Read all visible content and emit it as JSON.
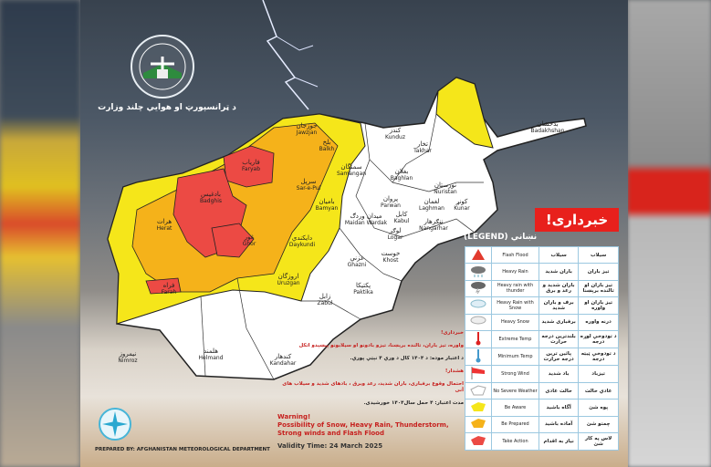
{
  "header": {
    "ministry": "د ټرانسپورټ او هوايي چلند وزارت"
  },
  "banner": {
    "title": "خبرداری!"
  },
  "legend": {
    "title": "(LEGEND) نښاني",
    "rows": [
      {
        "icon": "flash-flood-icon",
        "en": "Flash Flood",
        "fa": "سیلاب",
        "ps": "سیلاب"
      },
      {
        "icon": "heavy-rain-icon",
        "en": "Heavy Rain",
        "fa": "باران شدید",
        "ps": "تیز باران"
      },
      {
        "icon": "heavy-rain-thunder-icon",
        "en": "Heavy rain with thunder",
        "fa": "باران شدید و رعد و برق",
        "ps": "تیز باران او تالنده برېښنا"
      },
      {
        "icon": "rain-snow-icon",
        "en": "Heavy Rain with Snow",
        "fa": "برف و باران شدید",
        "ps": "تیز باران او واوره"
      },
      {
        "icon": "heavy-snow-icon",
        "en": "Heavy Snow",
        "fa": "برفباری شدید",
        "ps": "درنه واوره"
      },
      {
        "icon": "thermometer-hot-icon",
        "en": "Extreme Temp",
        "fa": "بلندترین درجه حرارت",
        "ps": "د تودوخې لوړه درجه"
      },
      {
        "icon": "thermometer-cold-icon",
        "en": "Minimum  Temp",
        "fa": "پائین ترین درجه حرارت",
        "ps": "د تودوخې ټیټه درجه"
      },
      {
        "icon": "windsock-icon",
        "en": "Strong Wind",
        "fa": "باد شدید",
        "ps": "تیزباد"
      },
      {
        "icon": "map-white-icon",
        "en": "No Severe Weather",
        "fa": "حالت عادی",
        "ps": "عادي حالت"
      },
      {
        "icon": "map-yellow-icon",
        "en": "Be Aware",
        "fa": "آگاه باشید",
        "ps": "پوه شئ"
      },
      {
        "icon": "map-orange-icon",
        "en": "Be Prepared",
        "fa": "آماده باشید",
        "ps": "چمتو شئ"
      },
      {
        "icon": "map-red-icon",
        "en": "Take Action",
        "fa": "نیاز به اقدام",
        "ps": "لاس په کار شئ"
      }
    ]
  },
  "warning": {
    "ps_title": "خبرداری!",
    "ps_text": "واوره، تیز باران، تالنده برېښنا، تیزو بادونو او سیلابونو پېښېدو اتکل",
    "ps_validity": "د اعتبار موده: د ۱۴۰۴ کال د وري ۴ نېټې پورې.",
    "fa_title": "هشدار!",
    "fa_text": "احتمال وقوع برفباری، باران شدید، رعد وبرق ، بادهای شدید و سیلاب های آنی",
    "fa_validity": "مدت اعتبار: ۴ حمل سال۱۴۰۴ خورشیدی.",
    "en_title": "Warning!",
    "en_text": "Possibility of Snow, Heavy Rain, Thunderstorm, Strong winds and Flash Flood",
    "en_validity": "Validity Time: 24 March 2025"
  },
  "footer": {
    "prepared": "PREPARED BY: AFGHANISTAN METEOROLOGICAL DEPARTMENT"
  },
  "colors": {
    "be_aware": "#f5e61a",
    "be_prepared": "#f5b21a",
    "take_action": "#ec4a44",
    "no_severe": "#ffffff",
    "banner": "#e8201c"
  },
  "provinces": [
    {
      "ps": "هرات",
      "en": "Herat"
    },
    {
      "ps": "بادغیس",
      "en": "Badghis"
    },
    {
      "ps": "فاریاب",
      "en": "Faryab"
    },
    {
      "ps": "جوزجان",
      "en": "Jawzjan"
    },
    {
      "ps": "بلخ",
      "en": "Balkh"
    },
    {
      "ps": "سرپل",
      "en": "Sar-e-Pul"
    },
    {
      "ps": "سمنگان",
      "en": "Samangan"
    },
    {
      "ps": "غور",
      "en": "Ghor"
    },
    {
      "ps": "دایکندي",
      "en": "Daykundi"
    },
    {
      "ps": "بامیان",
      "en": "Bamyan"
    },
    {
      "ps": "اروزگان",
      "en": "Uruzgan"
    },
    {
      "ps": "فراه",
      "en": "Farah"
    },
    {
      "ps": "نیمروز",
      "en": "Nimroz"
    },
    {
      "ps": "هلمند",
      "en": "Helmand"
    },
    {
      "ps": "کندهار",
      "en": "Kandahar"
    },
    {
      "ps": "زابل",
      "en": "Zabul"
    },
    {
      "ps": "غزني",
      "en": "Ghazni"
    },
    {
      "ps": "پکتیکا",
      "en": "Paktika"
    },
    {
      "ps": "خوست",
      "en": "Khost"
    },
    {
      "ps": "لوګر",
      "en": "Logar"
    },
    {
      "ps": "کابل",
      "en": "Kabul"
    },
    {
      "ps": "میدان وردګ",
      "en": "Maidan Wardak"
    },
    {
      "ps": "پروان",
      "en": "Parwan"
    },
    {
      "ps": "بغلان",
      "en": "Baghlan"
    },
    {
      "ps": "کندز",
      "en": "Kunduz"
    },
    {
      "ps": "تخار",
      "en": "Takhar"
    },
    {
      "ps": "بدخشان",
      "en": "Badakhshan"
    },
    {
      "ps": "نورستان",
      "en": "Nuristan"
    },
    {
      "ps": "لغمان",
      "en": "Laghman"
    },
    {
      "ps": "کونړ",
      "en": "Kunar"
    },
    {
      "ps": "ننګرهار",
      "en": "Nangarhar"
    }
  ]
}
